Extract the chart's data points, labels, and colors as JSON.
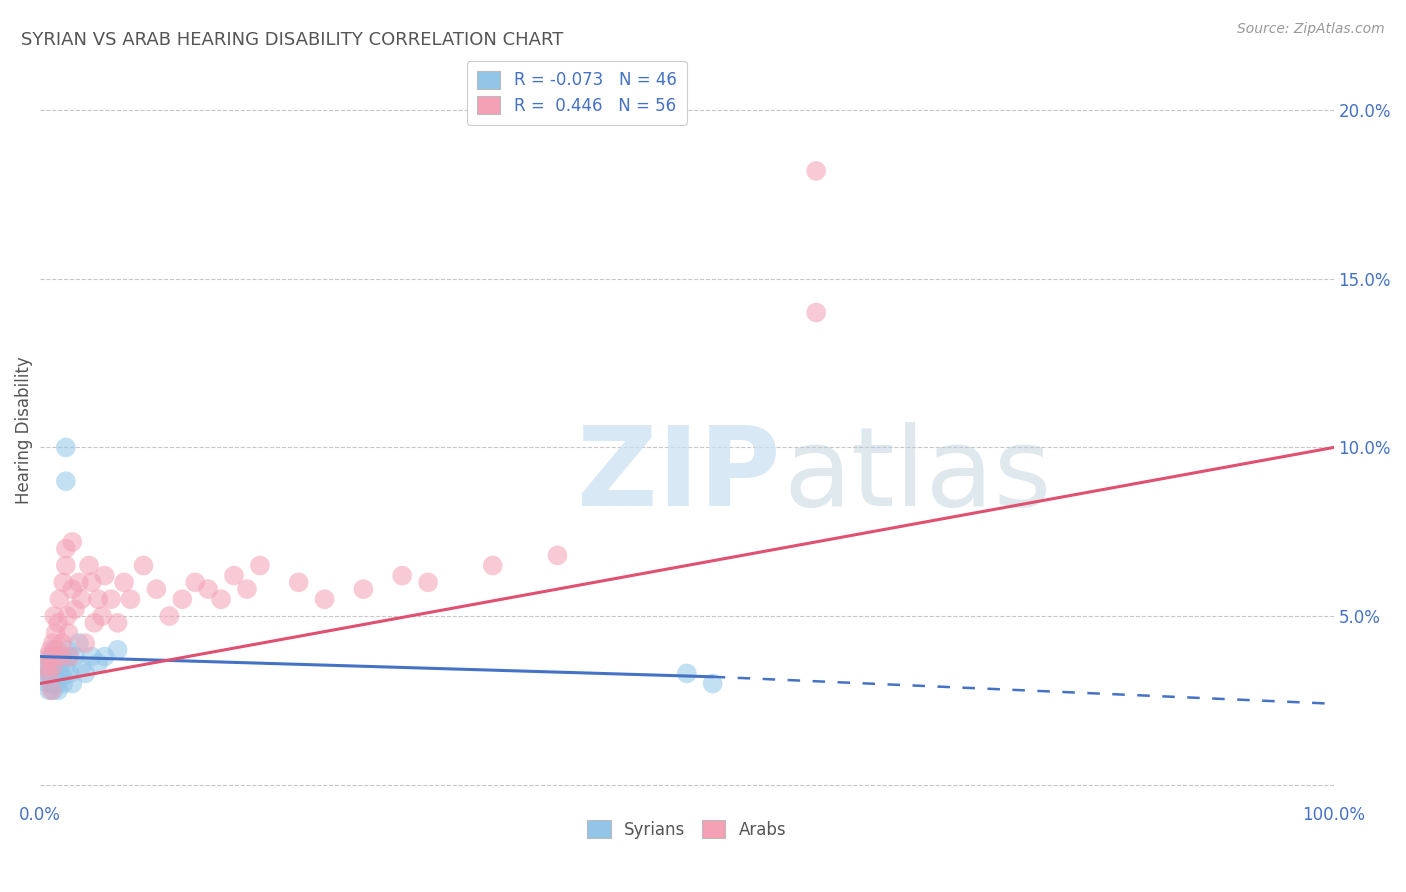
{
  "title": "SYRIAN VS ARAB HEARING DISABILITY CORRELATION CHART",
  "source": "Source: ZipAtlas.com",
  "ylabel": "Hearing Disability",
  "xlim": [
    0.0,
    1.0
  ],
  "ylim": [
    -0.005,
    0.215
  ],
  "x_ticks": [
    0.0,
    0.25,
    0.5,
    0.75,
    1.0
  ],
  "x_tick_labels": [
    "0.0%",
    "",
    "",
    "",
    "100.0%"
  ],
  "y_ticks": [
    0.0,
    0.05,
    0.1,
    0.15,
    0.2
  ],
  "y_tick_labels": [
    "",
    "5.0%",
    "10.0%",
    "15.0%",
    "20.0%"
  ],
  "color_syrians": "#92C5E8",
  "color_arabs": "#F4A0B5",
  "color_line_syrians": "#4472C4",
  "color_line_arabs": "#E05070",
  "background_color": "#FFFFFF",
  "grid_color": "#C8C8C8",
  "title_color": "#555555",
  "source_color": "#999999",
  "syrians_x": [
    0.005,
    0.005,
    0.006,
    0.007,
    0.007,
    0.008,
    0.008,
    0.008,
    0.009,
    0.009,
    0.01,
    0.01,
    0.01,
    0.01,
    0.01,
    0.01,
    0.01,
    0.011,
    0.011,
    0.012,
    0.012,
    0.013,
    0.013,
    0.014,
    0.015,
    0.015,
    0.016,
    0.017,
    0.018,
    0.02,
    0.021,
    0.022,
    0.023,
    0.025,
    0.027,
    0.03,
    0.032,
    0.035,
    0.04,
    0.045,
    0.05,
    0.06,
    0.02,
    0.02,
    0.5,
    0.52
  ],
  "syrians_y": [
    0.035,
    0.032,
    0.03,
    0.028,
    0.033,
    0.036,
    0.035,
    0.038,
    0.03,
    0.033,
    0.032,
    0.035,
    0.033,
    0.038,
    0.03,
    0.028,
    0.033,
    0.035,
    0.04,
    0.032,
    0.038,
    0.033,
    0.03,
    0.028,
    0.038,
    0.035,
    0.033,
    0.032,
    0.03,
    0.035,
    0.04,
    0.038,
    0.033,
    0.03,
    0.038,
    0.042,
    0.035,
    0.033,
    0.038,
    0.036,
    0.038,
    0.04,
    0.1,
    0.09,
    0.033,
    0.03
  ],
  "arabs_x": [
    0.005,
    0.006,
    0.007,
    0.008,
    0.009,
    0.01,
    0.01,
    0.01,
    0.011,
    0.012,
    0.013,
    0.014,
    0.015,
    0.016,
    0.017,
    0.018,
    0.02,
    0.021,
    0.022,
    0.023,
    0.025,
    0.027,
    0.03,
    0.032,
    0.035,
    0.038,
    0.04,
    0.042,
    0.045,
    0.048,
    0.05,
    0.055,
    0.06,
    0.065,
    0.07,
    0.08,
    0.09,
    0.1,
    0.11,
    0.12,
    0.13,
    0.14,
    0.15,
    0.16,
    0.17,
    0.2,
    0.22,
    0.25,
    0.28,
    0.3,
    0.35,
    0.4,
    0.02,
    0.025,
    0.6,
    0.6
  ],
  "arabs_y": [
    0.035,
    0.038,
    0.033,
    0.04,
    0.028,
    0.042,
    0.038,
    0.035,
    0.05,
    0.045,
    0.04,
    0.048,
    0.055,
    0.038,
    0.042,
    0.06,
    0.065,
    0.05,
    0.045,
    0.038,
    0.058,
    0.052,
    0.06,
    0.055,
    0.042,
    0.065,
    0.06,
    0.048,
    0.055,
    0.05,
    0.062,
    0.055,
    0.048,
    0.06,
    0.055,
    0.065,
    0.058,
    0.05,
    0.055,
    0.06,
    0.058,
    0.055,
    0.062,
    0.058,
    0.065,
    0.06,
    0.055,
    0.058,
    0.062,
    0.06,
    0.065,
    0.068,
    0.07,
    0.072,
    0.182,
    0.14
  ],
  "trend_syrians_x0": 0.0,
  "trend_syrians_x1": 0.52,
  "trend_syrians_y0": 0.038,
  "trend_syrians_y1": 0.032,
  "trend_syrians_dash_x0": 0.52,
  "trend_syrians_dash_x1": 1.0,
  "trend_syrians_dash_y0": 0.032,
  "trend_syrians_dash_y1": 0.024,
  "trend_arabs_x0": 0.0,
  "trend_arabs_x1": 1.0,
  "trend_arabs_y0": 0.03,
  "trend_arabs_y1": 0.1
}
